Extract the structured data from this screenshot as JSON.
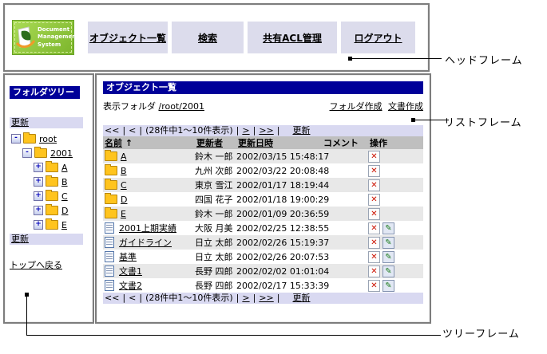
{
  "header": {
    "logo_lines": [
      "Document",
      "Management",
      "System"
    ],
    "nav": [
      {
        "label": "オブジェクト一覧"
      },
      {
        "label": "検索"
      },
      {
        "label": "共有ACL管理"
      },
      {
        "label": "ログアウト"
      }
    ]
  },
  "tree": {
    "title": "フォルダツリー",
    "refresh_top": "更新",
    "refresh_bottom": "更新",
    "back_to_top": "トップへ戻る",
    "nodes": [
      {
        "label": "root",
        "toggle": "-",
        "depth": 0
      },
      {
        "label": "2001",
        "toggle": "-",
        "depth": 1
      },
      {
        "label": "A",
        "toggle": "+",
        "depth": 2
      },
      {
        "label": "B",
        "toggle": "+",
        "depth": 2
      },
      {
        "label": "C",
        "toggle": "+",
        "depth": 2
      },
      {
        "label": "D",
        "toggle": "+",
        "depth": 2
      },
      {
        "label": "E",
        "toggle": "+",
        "depth": 2
      }
    ]
  },
  "list": {
    "title": "オブジェクト一覧",
    "current_folder_label": "表示フォルダ",
    "current_folder_path": "/root/2001",
    "create_folder": "フォルダ作成",
    "create_doc": "文書作成",
    "pagination": {
      "first": "<<",
      "prev": "<",
      "status": "(28件中1～10件表示)",
      "next": ">",
      "last": ">>",
      "refresh": "更新",
      "sep": "|"
    },
    "columns": [
      "名前",
      "更新者",
      "更新日時",
      "コメント",
      "操作"
    ],
    "sort_arrow": "↑",
    "rows": [
      {
        "type": "folder",
        "name": "A",
        "updater": "鈴木 一郎",
        "updated": "2002/03/15 15:48:17",
        "comment": "",
        "ops": [
          "delete"
        ]
      },
      {
        "type": "folder",
        "name": "B",
        "updater": "九州 次郎",
        "updated": "2002/03/22 20:08:48",
        "comment": "",
        "ops": [
          "delete"
        ]
      },
      {
        "type": "folder",
        "name": "C",
        "updater": "東京 雪江",
        "updated": "2002/01/17 18:19:44",
        "comment": "",
        "ops": [
          "delete"
        ]
      },
      {
        "type": "folder",
        "name": "D",
        "updater": "四国 花子",
        "updated": "2002/01/18 19:00:29",
        "comment": "",
        "ops": [
          "delete"
        ]
      },
      {
        "type": "folder",
        "name": "E",
        "updater": "鈴木 一郎",
        "updated": "2002/01/09 20:36:59",
        "comment": "",
        "ops": [
          "delete"
        ]
      },
      {
        "type": "document",
        "name": "2001上期実績",
        "updater": "大阪 月美",
        "updated": "2002/02/25 12:38:55",
        "comment": "",
        "ops": [
          "delete",
          "edit"
        ]
      },
      {
        "type": "document",
        "name": "ガイドライン",
        "updater": "日立 太郎",
        "updated": "2002/02/26 15:19:37",
        "comment": "",
        "ops": [
          "delete",
          "edit"
        ]
      },
      {
        "type": "document",
        "name": "基準",
        "updater": "日立 太郎",
        "updated": "2002/02/26 20:07:53",
        "comment": "",
        "ops": [
          "delete",
          "edit"
        ]
      },
      {
        "type": "document",
        "name": "文書1",
        "updater": "長野 四郎",
        "updated": "2002/02/02 01:01:04",
        "comment": "",
        "ops": [
          "delete",
          "edit"
        ]
      },
      {
        "type": "document",
        "name": "文書2",
        "updater": "長野 四郎",
        "updated": "2002/02/17 15:33:39",
        "comment": "",
        "ops": [
          "delete",
          "edit"
        ]
      }
    ]
  },
  "annotations": {
    "head": "ヘッドフレーム",
    "list": "リストフレーム",
    "tree": "ツリーフレーム"
  },
  "colors": {
    "title_bar": "#000099",
    "nav_button_bg": "#dcdcec",
    "pagination_bg": "#d9d9f1",
    "table_header_bg": "#bfbfbf",
    "row_alt_bg": "#e8e8e8",
    "logo_green": "#8cc63f",
    "folder_yellow": "#ffc41e",
    "delete_red": "#cc1100"
  }
}
